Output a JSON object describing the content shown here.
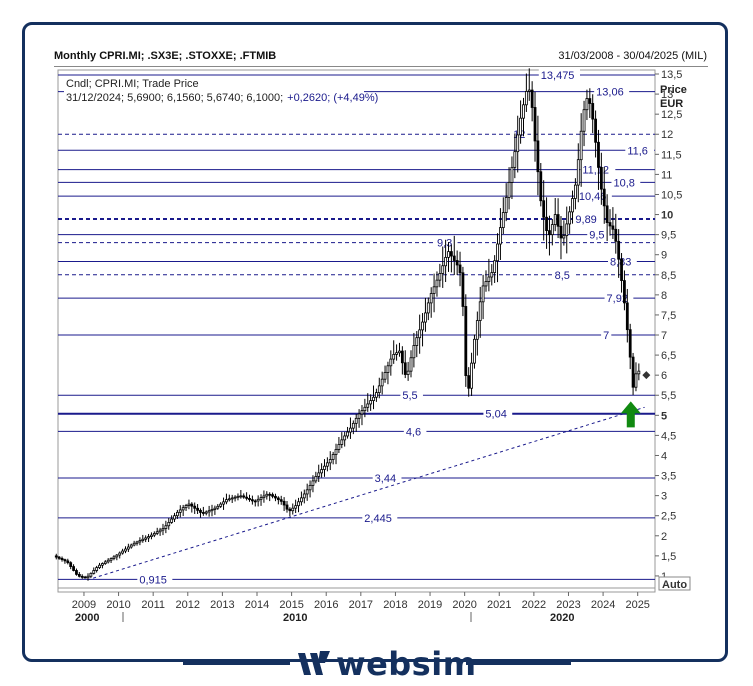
{
  "header": {
    "title": "Monthly CPRI.MI; .SX3E; .STOXXE; .FTMIB",
    "date_range": "31/03/2008 - 30/04/2025 (MIL)"
  },
  "legend": {
    "line1": "Cndl; CPRI.MI; Trade Price",
    "line2_prefix": "31/12/2024; 5,6900; 6,1560; 5,6740; 6,1000;",
    "line2_change": "+0,2620; (+4,49%)"
  },
  "brand": {
    "logo_text": "websim"
  },
  "colors": {
    "accent": "#14305e",
    "levels": "#1a1a8c",
    "candles": "#000000",
    "arrow": "#118a11"
  },
  "chart_data": {
    "type": "candlestick",
    "y_axis": {
      "label_top": "Price",
      "label_unit": "EUR",
      "min": 0.6,
      "max": 13.6,
      "ticks": [
        "13,5",
        "13",
        "12,5",
        "12",
        "11,5",
        "11",
        "10,5",
        "10",
        "9,5",
        "9",
        "8,5",
        "8",
        "7,5",
        "7",
        "6,5",
        "6",
        "5,5",
        "5",
        "4,5",
        "4",
        "3,5",
        "3",
        "2,5",
        "2",
        "1,5",
        "1"
      ],
      "tick_values": [
        13.5,
        13,
        12.5,
        12,
        11.5,
        11,
        10.5,
        10,
        9.5,
        9,
        8.5,
        8,
        7.5,
        7,
        6.5,
        6,
        5.5,
        5,
        4.5,
        4,
        3.5,
        3,
        2.5,
        2,
        1.5,
        1
      ],
      "bold_ticks": [
        "10",
        "5"
      ],
      "auto_label": "Auto"
    },
    "x_axis": {
      "years": [
        "2009",
        "2010",
        "2011",
        "2012",
        "2013",
        "2014",
        "2015",
        "2016",
        "2017",
        "2018",
        "2019",
        "2020",
        "2021",
        "2022",
        "2023",
        "2024",
        "2025"
      ],
      "decades": [
        "2000",
        "2010",
        "2020"
      ]
    },
    "levels": [
      {
        "value": 13.475,
        "label": "13,475",
        "style": "solid",
        "label_at": 2022.2
      },
      {
        "value": 13.06,
        "label": "13,06",
        "style": "solid",
        "label_at": 2023.8
      },
      {
        "value": 12,
        "label": "12",
        "style": "dashed",
        "label_at": 2021.4
      },
      {
        "value": 11.6,
        "label": "11,6",
        "style": "solid",
        "label_at": 2024.7
      },
      {
        "value": 11.12,
        "label": "11,12",
        "style": "solid",
        "label_at": 2023.4
      },
      {
        "value": 10.8,
        "label": "10,8",
        "style": "solid",
        "label_at": 2024.3
      },
      {
        "value": 10.46,
        "label": "10,46",
        "style": "solid",
        "label_at": 2023.3
      },
      {
        "value": 9.89,
        "label": "9,89",
        "style": "dashed-bold",
        "label_at": 2023.2
      },
      {
        "value": 9.5,
        "label": "9,5",
        "style": "solid",
        "label_at": 2023.6
      },
      {
        "value": 9.3,
        "label": "9,3",
        "style": "dashed",
        "label_at": 2019.2
      },
      {
        "value": 8.83,
        "label": "8,83",
        "style": "solid",
        "label_at": 2024.2
      },
      {
        "value": 8.5,
        "label": "8,5",
        "style": "dashed",
        "label_at": 2022.6
      },
      {
        "value": 7.92,
        "label": "7,92",
        "style": "solid",
        "label_at": 2024.1
      },
      {
        "value": 7,
        "label": "7",
        "style": "solid",
        "label_at": 2024.0
      },
      {
        "value": 5.5,
        "label": "5,5",
        "style": "solid",
        "label_at": 2018.2
      },
      {
        "value": 5.04,
        "label": "5,04",
        "style": "solid-bold",
        "label_at": 2020.6
      },
      {
        "value": 4.6,
        "label": "4,6",
        "style": "solid",
        "label_at": 2018.3
      },
      {
        "value": 3.44,
        "label": "3,44",
        "style": "solid",
        "label_at": 2017.4
      },
      {
        "value": 2.445,
        "label": "2,445",
        "style": "solid",
        "label_at": 2017.1
      },
      {
        "value": 0.915,
        "label": "0,915",
        "style": "solid",
        "label_at": 2010.6
      }
    ],
    "trendline": {
      "x": [
        2009.1,
        2025.2
      ],
      "y": [
        0.9,
        5.2
      ],
      "style": "dashed"
    },
    "arrow": {
      "x": 2024.8,
      "y": 5.0,
      "direction": "up"
    },
    "path_points": [
      [
        2008.2,
        1.5
      ],
      [
        2008.6,
        1.35
      ],
      [
        2008.9,
        1.0
      ],
      [
        2009.15,
        0.95
      ],
      [
        2009.5,
        1.25
      ],
      [
        2010.0,
        1.5
      ],
      [
        2010.5,
        1.8
      ],
      [
        2011.0,
        2.0
      ],
      [
        2011.4,
        2.2
      ],
      [
        2011.8,
        2.6
      ],
      [
        2012.1,
        2.8
      ],
      [
        2012.5,
        2.55
      ],
      [
        2012.9,
        2.7
      ],
      [
        2013.2,
        2.9
      ],
      [
        2013.6,
        3.0
      ],
      [
        2014.0,
        2.85
      ],
      [
        2014.4,
        3.05
      ],
      [
        2014.8,
        2.85
      ],
      [
        2015.0,
        2.6
      ],
      [
        2015.2,
        2.75
      ],
      [
        2015.5,
        3.1
      ],
      [
        2015.8,
        3.5
      ],
      [
        2016.2,
        3.9
      ],
      [
        2016.5,
        4.35
      ],
      [
        2016.8,
        4.7
      ],
      [
        2017.0,
        5.0
      ],
      [
        2017.2,
        5.2
      ],
      [
        2017.5,
        5.5
      ],
      [
        2017.8,
        6.1
      ],
      [
        2018.0,
        6.5
      ],
      [
        2018.2,
        6.6
      ],
      [
        2018.4,
        5.9
      ],
      [
        2018.6,
        6.7
      ],
      [
        2018.9,
        7.4
      ],
      [
        2019.1,
        8.0
      ],
      [
        2019.4,
        8.6
      ],
      [
        2019.6,
        9.1
      ],
      [
        2019.9,
        8.7
      ],
      [
        2020.0,
        8.4
      ],
      [
        2020.15,
        5.3
      ],
      [
        2020.35,
        6.8
      ],
      [
        2020.6,
        8.2
      ],
      [
        2020.9,
        8.6
      ],
      [
        2021.1,
        9.6
      ],
      [
        2021.3,
        10.5
      ],
      [
        2021.5,
        11.4
      ],
      [
        2021.7,
        12.4
      ],
      [
        2021.9,
        13.2
      ],
      [
        2022.0,
        13.0
      ],
      [
        2022.15,
        11.5
      ],
      [
        2022.3,
        10.2
      ],
      [
        2022.5,
        9.4
      ],
      [
        2022.7,
        10.0
      ],
      [
        2022.9,
        9.3
      ],
      [
        2023.1,
        10.0
      ],
      [
        2023.3,
        10.8
      ],
      [
        2023.5,
        12.5
      ],
      [
        2023.65,
        13.0
      ],
      [
        2023.8,
        12.3
      ],
      [
        2024.0,
        10.8
      ],
      [
        2024.2,
        9.8
      ],
      [
        2024.4,
        9.6
      ],
      [
        2024.55,
        8.8
      ],
      [
        2024.7,
        7.8
      ],
      [
        2024.85,
        6.6
      ],
      [
        2024.95,
        5.7
      ],
      [
        2025.05,
        6.1
      ]
    ],
    "last_marker": {
      "x": 2025.25,
      "y": 6.0
    }
  }
}
